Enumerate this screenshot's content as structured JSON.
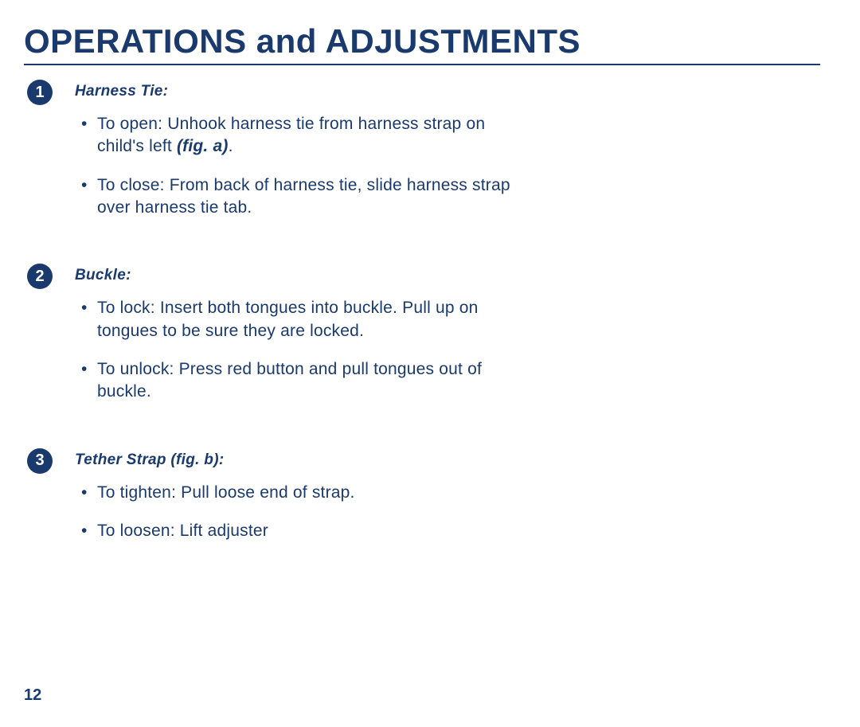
{
  "title": "OPERATIONS and ADJUSTMENTS",
  "page_number": "12",
  "colors": {
    "text": "#1a3a6e",
    "background": "#ffffff",
    "badge_bg": "#1a3a6e",
    "badge_fg": "#ffffff",
    "rule": "#1a3a6e"
  },
  "typography": {
    "title_size": 42,
    "heading_size": 19,
    "body_size": 21,
    "page_num_size": 20,
    "heading_style": "bold italic"
  },
  "sections": [
    {
      "number": "1",
      "heading": "Harness Tie:",
      "bullets": [
        {
          "pre": "To open:  Unhook harness tie from harness strap on child's left ",
          "fig": "(fig. a)",
          "post": "."
        },
        {
          "pre": "To close:  From back of harness tie, slide harness strap over harness tie tab.",
          "fig": "",
          "post": ""
        }
      ]
    },
    {
      "number": "2",
      "heading": "Buckle:",
      "bullets": [
        {
          "pre": "To lock:  Insert both tongues into buckle. Pull up on tongues to be sure they are locked.",
          "fig": "",
          "post": ""
        },
        {
          "pre": "To unlock:  Press red button and pull tongues out of buckle.",
          "fig": "",
          "post": ""
        }
      ]
    },
    {
      "number": "3",
      "heading": "Tether Strap (fig. b):",
      "bullets": [
        {
          "pre": "To tighten:  Pull loose end of strap.",
          "fig": "",
          "post": ""
        },
        {
          "pre": "To loosen:  Lift adjuster",
          "fig": "",
          "post": ""
        }
      ]
    }
  ]
}
